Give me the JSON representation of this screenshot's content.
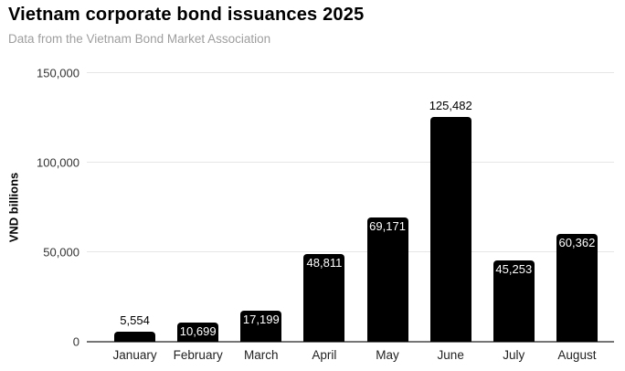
{
  "title": "Vietnam corporate bond issuances 2025",
  "subtitle": "Data from the Vietnam Bond Market Association",
  "chart_data": {
    "type": "bar",
    "title": "Vietnam corporate bond issuances 2025",
    "subtitle": "Data from the Vietnam Bond Market Association",
    "categories": [
      "January",
      "February",
      "March",
      "April",
      "May",
      "June",
      "July",
      "August"
    ],
    "values": [
      5554,
      10699,
      17199,
      48811,
      69171,
      125482,
      45253,
      60362
    ],
    "value_labels": [
      "5,554",
      "10,699",
      "17,199",
      "48,811",
      "69,171",
      "125,482",
      "45,253",
      "60,362"
    ],
    "xlabel": "",
    "ylabel": "VND billions",
    "ylim": [
      0,
      150000
    ],
    "yticks": [
      0,
      50000,
      100000,
      150000
    ],
    "ytick_labels": [
      "0",
      "50,000",
      "100,000",
      "150,000"
    ],
    "grid": true,
    "legend": false,
    "outside_label_categories": [
      "January",
      "June"
    ],
    "colors": {
      "background": "#ffffff",
      "bar": "#000000",
      "label_inside": "#ffffff",
      "label_outside": "#000000",
      "gridline": "#e6e6e6",
      "axis_line": "#757575",
      "tick_label": "#333333",
      "title": "#000000",
      "subtitle": "#9e9e9e"
    }
  }
}
